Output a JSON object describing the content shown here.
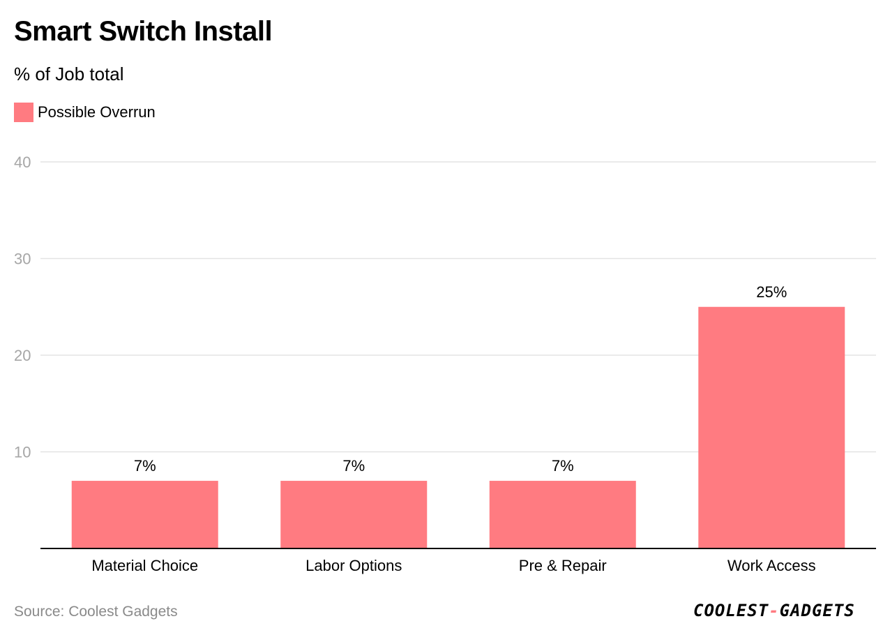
{
  "title": "Smart Switch Install",
  "subtitle": "% of Job total",
  "source": "Source: Coolest Gadgets",
  "logo": {
    "left": "COOLEST",
    "dash": "-",
    "right": "GADGETS"
  },
  "colors": {
    "bar": "#ff7b81",
    "grid": "#e3e3e3",
    "axis": "#000000",
    "tick_label": "#a6a6a6",
    "text": "#000000"
  },
  "chart_data": {
    "type": "bar",
    "title": "Smart Switch Install",
    "subtitle": "% of Job total",
    "categories": [
      "Material Choice",
      "Labor Options",
      "Pre & Repair",
      "Work Access"
    ],
    "series": [
      {
        "name": "Possible Overrun",
        "values": [
          7,
          7,
          7,
          25
        ],
        "labels": [
          "7%",
          "7%",
          "7%",
          "25%"
        ]
      }
    ],
    "ylim": [
      0,
      40
    ],
    "yticks": [
      10,
      20,
      30,
      40
    ],
    "grid": true,
    "legend_position": "top-left"
  }
}
